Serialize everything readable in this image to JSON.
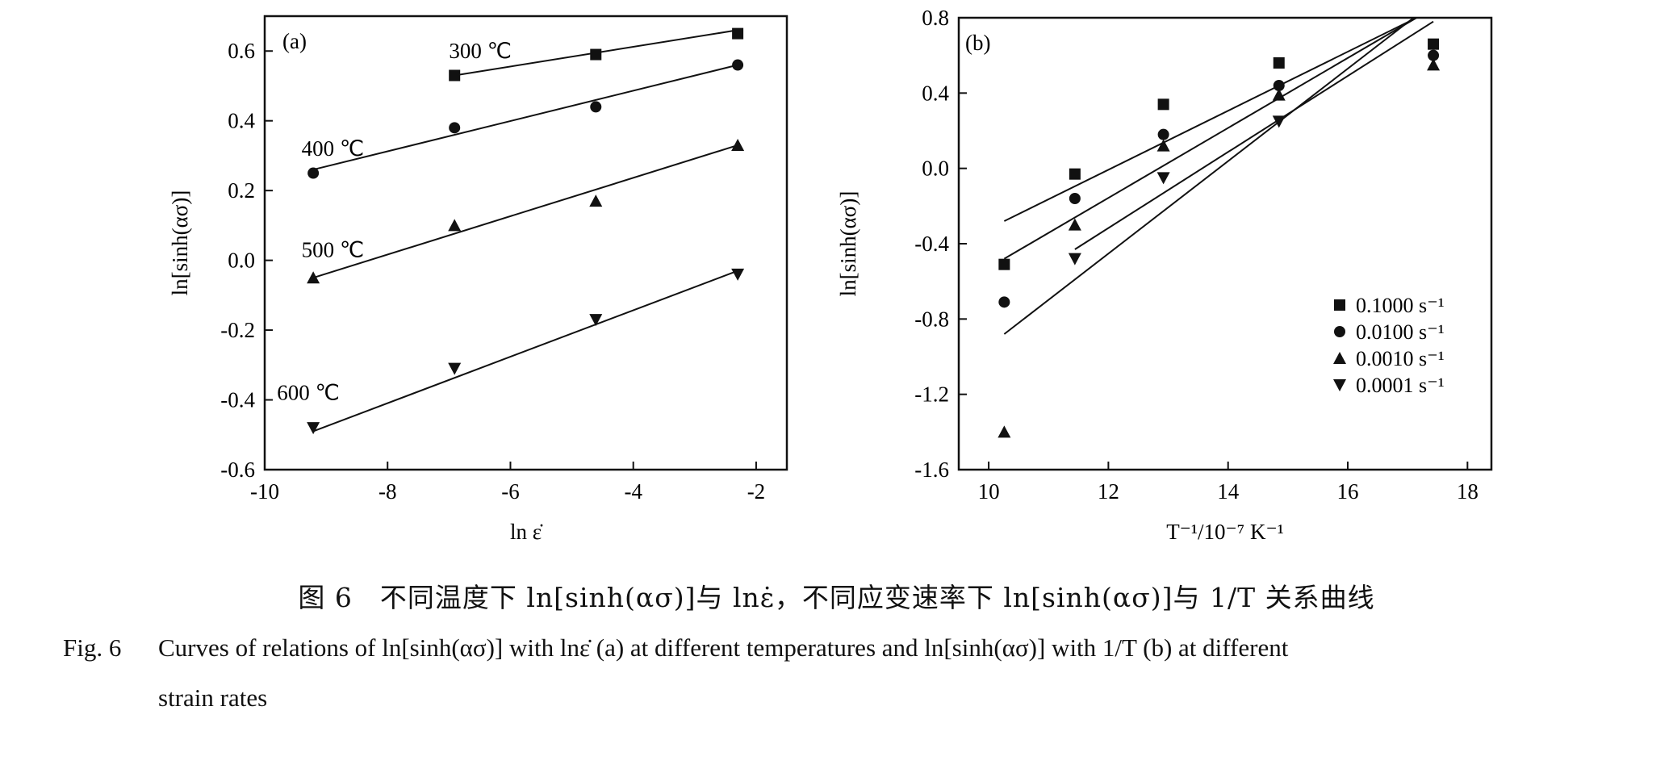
{
  "caption": {
    "cn": "图 6　不同温度下 ln[sinh(ασ)]与 lnε̇，不同应变速率下 ln[sinh(ασ)]与 1/T 关系曲线",
    "en_label": "Fig. 6",
    "en_line1": "Curves of relations of ln[sinh(ασ)] with lnε̇ (a) at different temperatures and ln[sinh(ασ)] with 1/T (b) at different",
    "en_line2": "strain rates"
  },
  "chart_data": [
    {
      "type": "scatter",
      "panel_label": "(a)",
      "xlabel": "ln ε̇",
      "ylabel": "ln[sinh(ασ)]",
      "xlim": [
        -10,
        -1.5
      ],
      "ylim": [
        -0.6,
        0.7
      ],
      "xticks": [
        -10,
        -8,
        -6,
        -4,
        -2
      ],
      "yticks": [
        -0.6,
        -0.4,
        -0.2,
        0.0,
        0.2,
        0.4,
        0.6
      ],
      "ytick_labels": [
        "-0.6",
        "-0.4",
        "-0.2",
        "0.0",
        "0.2",
        "0.4",
        "0.6"
      ],
      "series": [
        {
          "name": "300 ℃",
          "marker": "square",
          "x": [
            -6.91,
            -4.61,
            -2.3
          ],
          "y": [
            0.53,
            0.59,
            0.65
          ],
          "fit": [
            [
              -6.91,
              0.53
            ],
            [
              -2.3,
              0.66
            ]
          ]
        },
        {
          "name": "400 ℃",
          "marker": "circle",
          "x": [
            -9.21,
            -6.91,
            -4.61,
            -2.3
          ],
          "y": [
            0.25,
            0.38,
            0.44,
            0.56
          ],
          "fit": [
            [
              -9.21,
              0.26
            ],
            [
              -2.3,
              0.56
            ]
          ]
        },
        {
          "name": "500 ℃",
          "marker": "triangle-up",
          "x": [
            -9.21,
            -6.91,
            -4.61,
            -2.3
          ],
          "y": [
            -0.05,
            0.1,
            0.17,
            0.33
          ],
          "fit": [
            [
              -9.21,
              -0.05
            ],
            [
              -2.3,
              0.33
            ]
          ]
        },
        {
          "name": "600 ℃",
          "marker": "triangle-down",
          "x": [
            -9.21,
            -6.91,
            -4.61,
            -2.3
          ],
          "y": [
            -0.48,
            -0.31,
            -0.17,
            -0.04
          ],
          "fit": [
            [
              -9.21,
              -0.49
            ],
            [
              -2.3,
              -0.03
            ]
          ]
        }
      ],
      "annotations": [
        {
          "text": "300 ℃",
          "x": -7.0,
          "y": 0.58
        },
        {
          "text": "400 ℃",
          "x": -9.4,
          "y": 0.3
        },
        {
          "text": "500 ℃",
          "x": -9.4,
          "y": 0.01
        },
        {
          "text": "600 ℃",
          "x": -9.8,
          "y": -0.4
        }
      ]
    },
    {
      "type": "scatter",
      "panel_label": "(b)",
      "xlabel": "T⁻¹/10⁻⁷ K⁻¹",
      "ylabel": "ln[sinh(ασ)]",
      "xlim": [
        9.5,
        18.4
      ],
      "ylim": [
        -1.6,
        0.8
      ],
      "xticks": [
        10,
        12,
        14,
        16,
        18
      ],
      "yticks": [
        -1.6,
        -1.2,
        -0.8,
        -0.4,
        0.0,
        0.4,
        0.8
      ],
      "ytick_labels": [
        "-1.6",
        "-1.2",
        "-0.8",
        "-0.4",
        "0.0",
        "0.4",
        "0.8"
      ],
      "legend_position": "bottom-right",
      "series": [
        {
          "name": "0.1000 s⁻¹",
          "marker": "square",
          "x": [
            10.26,
            11.44,
            12.92,
            14.85,
            17.43
          ],
          "y": [
            -0.51,
            -0.03,
            0.34,
            0.56,
            0.66
          ],
          "fit": [
            [
              10.26,
              -0.28
            ],
            [
              17.15,
              0.8
            ]
          ]
        },
        {
          "name": "0.0100 s⁻¹",
          "marker": "circle",
          "x": [
            10.26,
            11.44,
            12.92,
            14.85,
            17.43
          ],
          "y": [
            -0.71,
            -0.16,
            0.18,
            0.44,
            0.6
          ],
          "fit": [
            [
              10.26,
              -0.48
            ],
            [
              17.15,
              0.8
            ]
          ]
        },
        {
          "name": "0.0010 s⁻¹",
          "marker": "triangle-up",
          "x": [
            10.26,
            11.44,
            12.92,
            14.85,
            17.43
          ],
          "y": [
            -1.4,
            -0.3,
            0.12,
            0.39,
            0.55
          ],
          "fit": [
            [
              11.44,
              -0.43
            ],
            [
              17.43,
              0.78
            ]
          ]
        },
        {
          "name": "0.0001 s⁻¹",
          "marker": "triangle-down",
          "x": [
            11.44,
            12.92,
            14.85
          ],
          "y": [
            -0.48,
            -0.05,
            0.25
          ],
          "fit": [
            [
              10.26,
              -0.88
            ],
            [
              17.1,
              0.8
            ]
          ]
        }
      ]
    }
  ]
}
